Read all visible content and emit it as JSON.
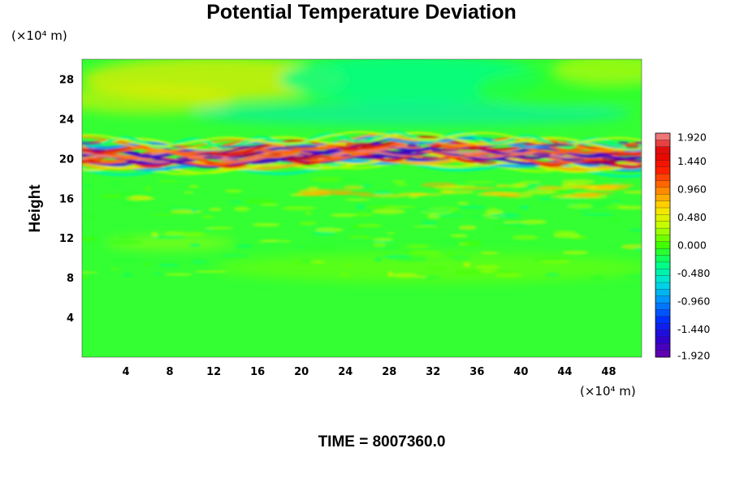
{
  "chart_data": {
    "type": "heatmap",
    "title": "Potential Temperature Deviation",
    "ylabel": "Height",
    "x_unit": "(×10⁴ m)",
    "y_unit": "(×10⁴ m)",
    "x_ticks": [
      4,
      8,
      12,
      16,
      20,
      24,
      28,
      32,
      36,
      40,
      44,
      48
    ],
    "y_ticks": [
      4,
      8,
      12,
      16,
      20,
      24,
      28
    ],
    "xlim": [
      0,
      51
    ],
    "ylim": [
      0,
      30
    ],
    "footer": "TIME = 8007360.0",
    "colorbar": {
      "min": -1.92,
      "max": 1.92,
      "tick_labels": [
        "1.920",
        "1.440",
        "0.960",
        "0.480",
        "0.000",
        "-0.480",
        "-0.960",
        "-1.440",
        "-1.920"
      ],
      "tick_values": [
        1.92,
        1.44,
        0.96,
        0.48,
        0.0,
        -0.48,
        -0.96,
        -1.44,
        -1.92
      ],
      "levels": 33
    },
    "field_description_bands": [
      {
        "y_range": [
          0,
          8
        ],
        "typical_value": 0.1
      },
      {
        "y_range": [
          8,
          12
        ],
        "typical_value": 0.15
      },
      {
        "y_range": [
          12,
          18
        ],
        "typical_value": 0.1
      },
      {
        "y_range": [
          19,
          22
        ],
        "typical_value": "alternating -1.92 to 1.92"
      },
      {
        "y_range": [
          22,
          26
        ],
        "typical_value": -0.3
      },
      {
        "y_range": [
          26,
          30
        ],
        "typical_value": 0.3
      }
    ]
  },
  "colors": {
    "background_field": "#33ff33",
    "colormap": [
      "#6a00a8",
      "#2a00d0",
      "#0030ff",
      "#0090ff",
      "#00e0e0",
      "#00ff80",
      "#40ff00",
      "#c0ff00",
      "#ffe000",
      "#ff8000",
      "#ff2000",
      "#e00000",
      "#f09090"
    ]
  }
}
